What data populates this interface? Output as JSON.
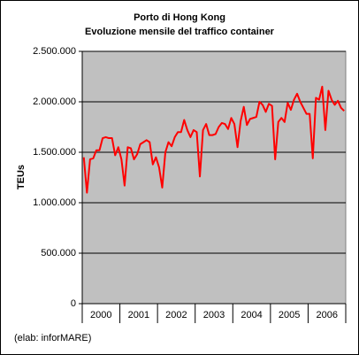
{
  "chart_data": {
    "type": "line",
    "title": "Porto di Hong Kong",
    "subtitle": "Evoluzione mensile del traffico container",
    "y_label": "TEUs",
    "note": "(elab: inforMARE)",
    "categories": [
      null,
      null,
      null,
      null,
      null,
      null,
      "2000",
      null,
      null,
      null,
      null,
      null,
      null,
      null,
      null,
      null,
      null,
      null,
      "2001",
      null,
      null,
      null,
      null,
      null,
      null,
      null,
      null,
      null,
      null,
      null,
      "2002",
      null,
      null,
      null,
      null,
      null,
      null,
      null,
      null,
      null,
      null,
      null,
      "2003",
      null,
      null,
      null,
      null,
      null,
      null,
      null,
      null,
      null,
      null,
      null,
      "2004",
      null,
      null,
      null,
      null,
      null,
      null,
      null,
      null,
      null,
      null,
      null,
      "2005",
      null,
      null,
      null,
      null,
      null,
      null,
      null,
      null,
      null,
      null,
      null,
      "2006",
      null,
      null,
      null,
      null,
      null
    ],
    "series": [
      {
        "name": "TEUs",
        "color": "#ff0000",
        "values": [
          1450000,
          1100000,
          1430000,
          1440000,
          1520000,
          1520000,
          1640000,
          1650000,
          1640000,
          1640000,
          1470000,
          1550000,
          1430000,
          1170000,
          1550000,
          1540000,
          1430000,
          1480000,
          1580000,
          1600000,
          1620000,
          1600000,
          1380000,
          1450000,
          1350000,
          1150000,
          1500000,
          1600000,
          1560000,
          1650000,
          1700000,
          1700000,
          1820000,
          1720000,
          1650000,
          1720000,
          1700000,
          1260000,
          1720000,
          1780000,
          1670000,
          1670000,
          1680000,
          1750000,
          1790000,
          1780000,
          1730000,
          1840000,
          1780000,
          1550000,
          1810000,
          1950000,
          1770000,
          1830000,
          1840000,
          1850000,
          2000000,
          1970000,
          1900000,
          1980000,
          1960000,
          1430000,
          1800000,
          1840000,
          1800000,
          1990000,
          1920000,
          2020000,
          2080000,
          2000000,
          1940000,
          1880000,
          1880000,
          1440000,
          2040000,
          2020000,
          2150000,
          1720000,
          2110000,
          2020000,
          1970000,
          2010000,
          1940000,
          1910000
        ]
      }
    ],
    "ylim": [
      0,
      2500000
    ],
    "yticks": [
      0,
      {
        "value": 500000,
        "label": "500.000"
      },
      {
        "value": 1000000,
        "label": "1.000.000"
      },
      {
        "value": 1500000,
        "label": "1.500.000"
      },
      {
        "value": 2000000,
        "label": "2.000.000"
      },
      {
        "value": 2500000,
        "label": "2.500.000"
      }
    ],
    "grid": true,
    "plot_background": "#c0c0c0"
  }
}
